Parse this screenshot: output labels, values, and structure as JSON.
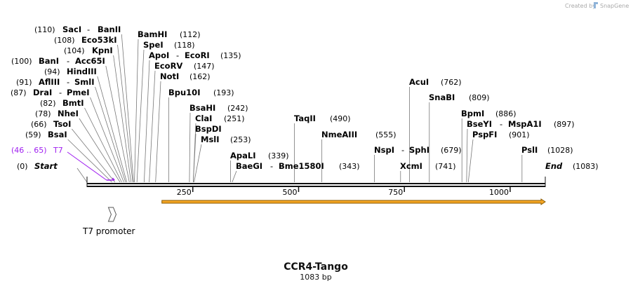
{
  "credit": "Created by",
  "brand": "SnapGene",
  "plasmid": {
    "name": "CCR4-Tango",
    "size_label": "1083 bp",
    "length": 1083
  },
  "ticks": [
    {
      "value": 250,
      "label": "250"
    },
    {
      "value": 500,
      "label": "500"
    },
    {
      "value": 750,
      "label": "750"
    },
    {
      "value": 1000,
      "label": "1000"
    }
  ],
  "sites": [
    {
      "enzymes": [
        "SacI",
        "BanII"
      ],
      "pos": 110,
      "pos_label": "(110)"
    },
    {
      "enzymes": [
        "Eco53kI"
      ],
      "pos": 108,
      "pos_label": "(108)"
    },
    {
      "enzymes": [
        "KpnI"
      ],
      "pos": 104,
      "pos_label": "(104)"
    },
    {
      "enzymes": [
        "BanI",
        "Acc65I"
      ],
      "pos": 100,
      "pos_label": "(100)"
    },
    {
      "enzymes": [
        "HindIII"
      ],
      "pos": 94,
      "pos_label": "(94)"
    },
    {
      "enzymes": [
        "AflIII",
        "SmlI"
      ],
      "pos": 91,
      "pos_label": "(91)"
    },
    {
      "enzymes": [
        "DraI",
        "PmeI"
      ],
      "pos": 87,
      "pos_label": "(87)"
    },
    {
      "enzymes": [
        "BmtI"
      ],
      "pos": 82,
      "pos_label": "(82)"
    },
    {
      "enzymes": [
        "NheI"
      ],
      "pos": 78,
      "pos_label": "(78)"
    },
    {
      "enzymes": [
        "TsoI"
      ],
      "pos": 66,
      "pos_label": "(66)"
    },
    {
      "enzymes": [
        "BsaI"
      ],
      "pos": 59,
      "pos_label": "(59)"
    },
    {
      "enzymes": [
        "BamHI"
      ],
      "pos": 112,
      "pos_label": "(112)"
    },
    {
      "enzymes": [
        "SpeI"
      ],
      "pos": 118,
      "pos_label": "(118)"
    },
    {
      "enzymes": [
        "ApoI",
        "EcoRI"
      ],
      "pos": 135,
      "pos_label": "(135)"
    },
    {
      "enzymes": [
        "EcoRV"
      ],
      "pos": 147,
      "pos_label": "(147)"
    },
    {
      "enzymes": [
        "NotI"
      ],
      "pos": 162,
      "pos_label": "(162)"
    },
    {
      "enzymes": [
        "Bpu10I"
      ],
      "pos": 193,
      "pos_label": "(193)"
    },
    {
      "enzymes": [
        "BsaHI"
      ],
      "pos": 242,
      "pos_label": "(242)"
    },
    {
      "enzymes": [
        "ClaI"
      ],
      "pos": 251,
      "pos_label": "(251)"
    },
    {
      "enzymes": [
        "BspDI"
      ],
      "pos": 251,
      "pos_label": ""
    },
    {
      "enzymes": [
        "MslI"
      ],
      "pos": 253,
      "pos_label": "(253)"
    },
    {
      "enzymes": [
        "ApaLI"
      ],
      "pos": 339,
      "pos_label": "(339)"
    },
    {
      "enzymes": [
        "BaeGI",
        "Bme1580I"
      ],
      "pos": 343,
      "pos_label": "(343)"
    },
    {
      "enzymes": [
        "TaqII"
      ],
      "pos": 490,
      "pos_label": "(490)"
    },
    {
      "enzymes": [
        "NmeAIII"
      ],
      "pos": 555,
      "pos_label": "(555)"
    },
    {
      "enzymes": [
        "AcuI"
      ],
      "pos": 762,
      "pos_label": "(762)"
    },
    {
      "enzymes": [
        "SnaBI"
      ],
      "pos": 809,
      "pos_label": "(809)"
    },
    {
      "enzymes": [
        "NspI",
        "SphI"
      ],
      "pos": 679,
      "pos_label": "(679)"
    },
    {
      "enzymes": [
        "XcmI"
      ],
      "pos": 741,
      "pos_label": "(741)"
    },
    {
      "enzymes": [
        "BpmI"
      ],
      "pos": 886,
      "pos_label": "(886)"
    },
    {
      "enzymes": [
        "BseYI",
        "MspA1I"
      ],
      "pos": 897,
      "pos_label": "(897)"
    },
    {
      "enzymes": [
        "PspFI"
      ],
      "pos": 901,
      "pos_label": "(901)"
    },
    {
      "enzymes": [
        "PslI"
      ],
      "pos": 1028,
      "pos_label": "(1028)"
    }
  ],
  "start": {
    "label": "Start",
    "pos_label": "(0)"
  },
  "end": {
    "label": "End",
    "pos_label": "(1083)"
  },
  "primer": {
    "name": "T7",
    "range_label": "(46 .. 65)",
    "start": 46,
    "end": 65,
    "color": "#a020f0"
  },
  "features": [
    {
      "name": "T7 promoter",
      "start": 46,
      "end": 65
    }
  ],
  "orf": {
    "start": 177,
    "end": 1083,
    "fill": "#f5a623",
    "edge": "#8a5a00"
  }
}
